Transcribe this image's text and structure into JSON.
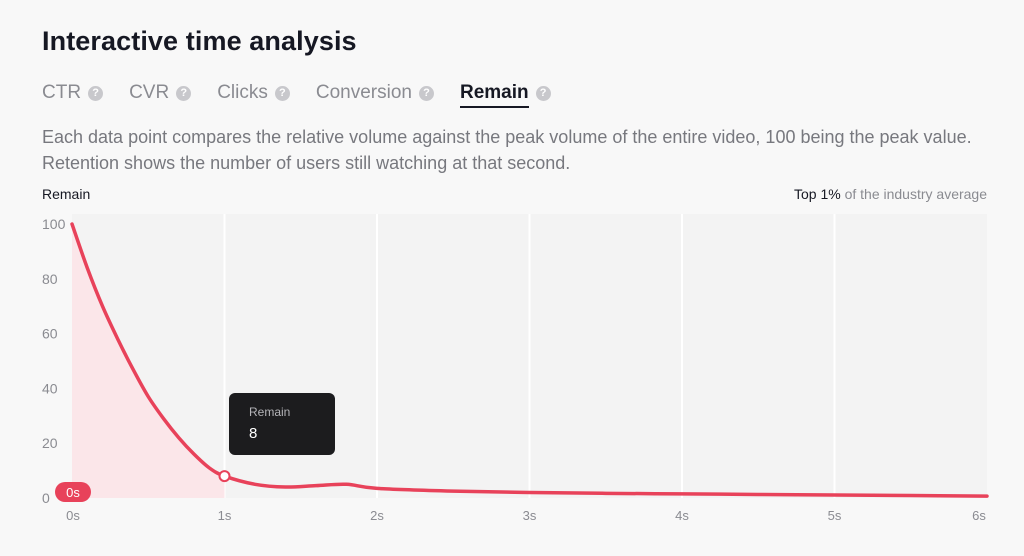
{
  "header": {
    "title": "Interactive time analysis"
  },
  "tabs": [
    {
      "label": "CTR",
      "active": false
    },
    {
      "label": "CVR",
      "active": false
    },
    {
      "label": "Clicks",
      "active": false
    },
    {
      "label": "Conversion",
      "active": false
    },
    {
      "label": "Remain",
      "active": true
    }
  ],
  "description": "Each data point compares the relative volume against the peak volume of the entire video, 100 being the peak value. Retention shows the number of users still watching at that second.",
  "chart_header": {
    "label": "Remain",
    "industry_strong": "Top 1%",
    "industry_rest": " of the industry average"
  },
  "tooltip": {
    "label": "Remain",
    "value": "8"
  },
  "marker_label": "0s",
  "colors": {
    "accent": "#e8425a",
    "fill": "#fbe3e6",
    "grid": "#ffffff",
    "plot_bg": "#f3f3f3"
  },
  "chart_data": {
    "type": "area",
    "title": "",
    "xlabel": "",
    "ylabel": "Remain",
    "x_ticks": [
      "0s",
      "1s",
      "2s",
      "3s",
      "4s",
      "5s",
      "6s"
    ],
    "y_ticks": [
      "100",
      "80",
      "60",
      "40",
      "20",
      "0"
    ],
    "xlim": [
      0,
      6
    ],
    "ylim": [
      0,
      100
    ],
    "grid": true,
    "series": [
      {
        "name": "Remain",
        "x": [
          0,
          0.1,
          0.2,
          0.3,
          0.4,
          0.5,
          0.6,
          0.7,
          0.8,
          0.9,
          1.0,
          1.2,
          1.4,
          1.6,
          1.8,
          2.0,
          2.5,
          3.0,
          3.5,
          4.0,
          4.5,
          5.0,
          5.5,
          6.0
        ],
        "y": [
          100,
          84,
          70,
          58,
          47,
          37,
          29,
          22,
          16,
          11,
          8,
          5,
          4,
          4.5,
          5,
          3.5,
          2.5,
          2,
          1.7,
          1.5,
          1.3,
          1.1,
          0.9,
          0.7
        ]
      }
    ],
    "highlight": {
      "x": 1.0,
      "y": 8
    }
  }
}
